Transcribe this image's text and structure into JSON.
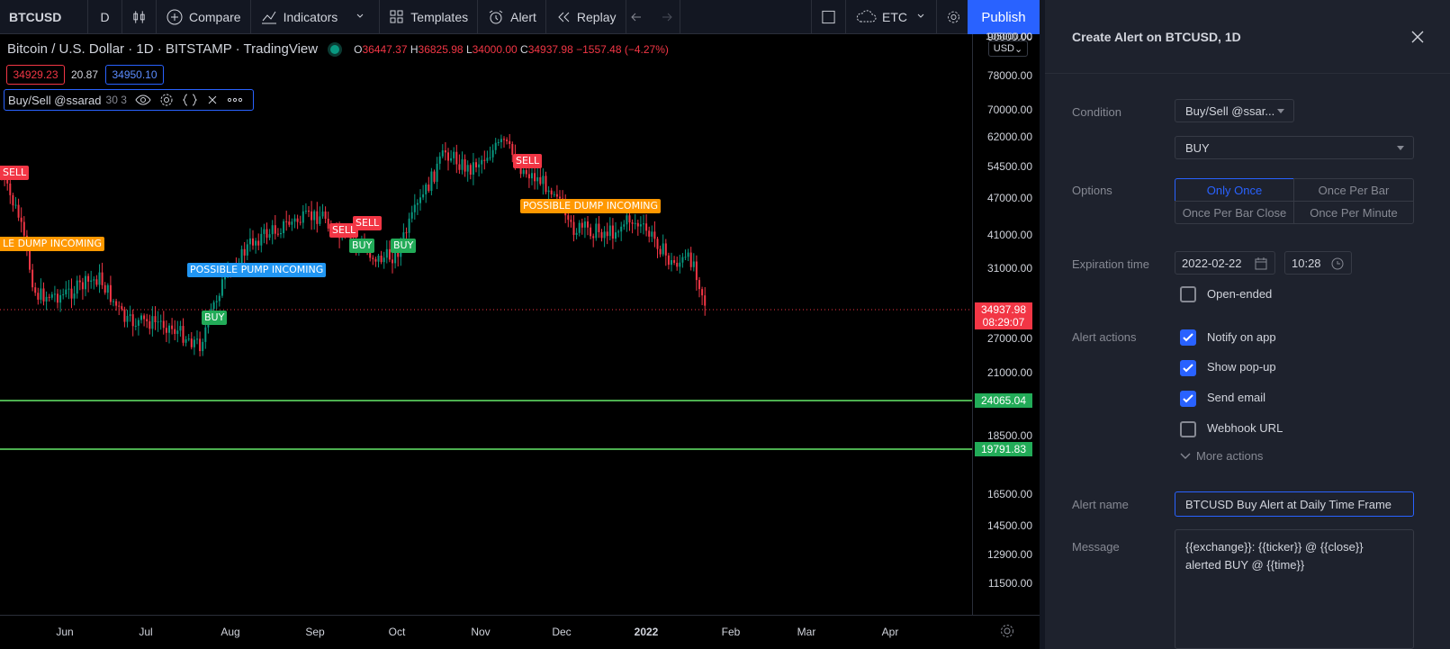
{
  "toolbar": {
    "symbol": "BTCUSD",
    "interval": "D",
    "compare": "Compare",
    "indicators": "Indicators",
    "templates": "Templates",
    "alert": "Alert",
    "replay": "Replay",
    "session": "ETC",
    "publish": "Publish"
  },
  "legend": {
    "title": "Bitcoin / U.S. Dollar · 1D · BITSTAMP · TradingView",
    "o_key": "O",
    "o": "36447.37",
    "h_key": "H",
    "h": "36825.98",
    "l_key": "L",
    "l": "34000.00",
    "c_key": "C",
    "c": "34937.98",
    "change": "−1557.48 (−4.27%)",
    "bid": "34929.23",
    "spread": "20.87",
    "ask": "34950.10"
  },
  "indicator": {
    "name": "Buy/Sell @ssarad",
    "args": "30 3"
  },
  "price_axis": {
    "currency": "USD",
    "ticks": [
      "105000.00",
      "90000.00",
      "78000.00",
      "70000.00",
      "62000.00",
      "54500.00",
      "47000.00",
      "41000.00",
      "31000.00",
      "27000.00",
      "21000.00",
      "18500.00",
      "16500.00",
      "14500.00",
      "12900.00",
      "11500.00"
    ],
    "current_price": "34937.98",
    "countdown": "08:29:07",
    "level_1": "24065.04",
    "level_2": "19791.83"
  },
  "time_axis": {
    "ticks": [
      "Jun",
      "Jul",
      "Aug",
      "Sep",
      "Oct",
      "Nov",
      "Dec",
      "2022",
      "Feb",
      "Mar",
      "Apr"
    ]
  },
  "chart_labels": {
    "sell": "SELL",
    "buy": "BUY",
    "dump_partial": "LE DUMP INCOMING",
    "pump": "POSSIBLE PUMP INCOMING",
    "dump": "POSSIBLE DUMP INCOMING"
  },
  "colors": {
    "up": "#089981",
    "down": "#f23645",
    "accent": "#2962ff",
    "level_line": "#4caf50"
  },
  "panel": {
    "title": "Create Alert on BTCUSD, 1D",
    "condition_label": "Condition",
    "condition_value": "Buy/Sell @ssar...",
    "condition_signal": "BUY",
    "options_label": "Options",
    "options": [
      "Only Once",
      "Once Per Bar",
      "Once Per Bar Close",
      "Once Per Minute"
    ],
    "expiration_label": "Expiration time",
    "expiration_date": "2022-02-22",
    "expiration_time": "10:28",
    "open_ended": "Open-ended",
    "actions_label": "Alert actions",
    "notify_app": "Notify on app",
    "show_popup": "Show pop-up",
    "send_email": "Send email",
    "webhook": "Webhook URL",
    "more_actions": "More actions",
    "alert_name_label": "Alert name",
    "alert_name": "BTCUSD Buy Alert at Daily Time Frame",
    "message_label": "Message",
    "message": "{{exchange}}: {{ticker}} @ {{close}}\nalerted BUY @ {{time}}"
  }
}
